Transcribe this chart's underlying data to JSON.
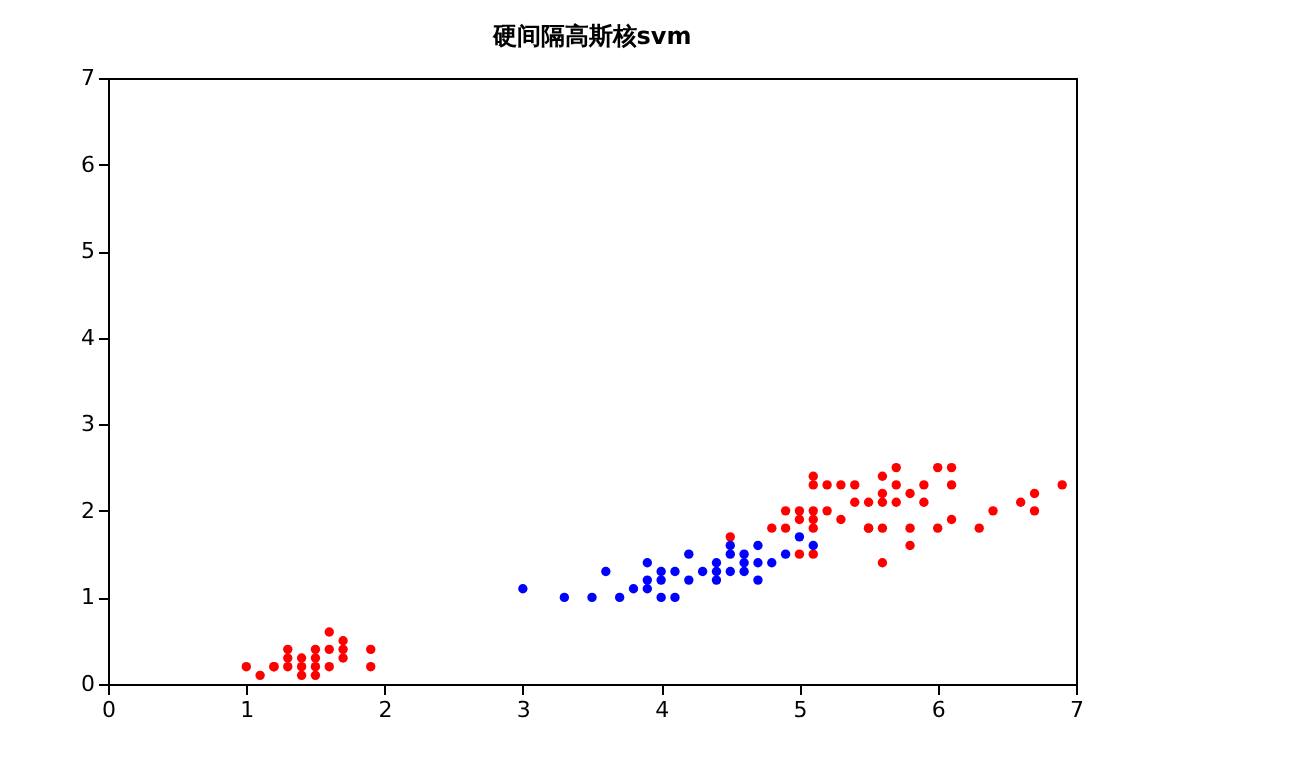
{
  "chart_data": {
    "type": "scatter",
    "title": "硬间隔高斯核svm",
    "marker": "circle",
    "grid": false,
    "xlim": [
      0,
      7
    ],
    "ylim": [
      0,
      7
    ],
    "xticks": [
      0,
      1,
      2,
      3,
      4,
      5,
      6,
      7
    ],
    "yticks": [
      0,
      1,
      2,
      3,
      4,
      5,
      6,
      7
    ],
    "series": [
      {
        "color": "#ff0000",
        "x": [
          1.4,
          1.3,
          1.5,
          1.7,
          1.4,
          1.5,
          1.6,
          1.4,
          1.1,
          1.2,
          1.5,
          1.3,
          1.7,
          1.5,
          1.0,
          1.9,
          1.6,
          1.6,
          1.9,
          1.3,
          1.7,
          1.2,
          6.0,
          5.1,
          5.9,
          5.6,
          5.8,
          6.6,
          4.5,
          6.3,
          6.1,
          5.1,
          5.3,
          5.5,
          5.0,
          5.1,
          5.3,
          6.7,
          6.9,
          5.0,
          5.7,
          4.9,
          6.7,
          4.9,
          5.7,
          6.0,
          4.8,
          5.6,
          5.8,
          6.1,
          6.4,
          5.6,
          5.1,
          5.6,
          6.1,
          5.6,
          5.5,
          5.4,
          5.1,
          5.9,
          5.7,
          5.2,
          5.0,
          5.2,
          5.4,
          5.1,
          5.8,
          5.5
        ],
        "values": [
          0.2,
          0.2,
          0.2,
          0.4,
          0.3,
          0.1,
          0.2,
          0.1,
          0.1,
          0.2,
          0.4,
          0.4,
          0.3,
          0.3,
          0.2,
          0.2,
          0.4,
          0.6,
          0.4,
          0.3,
          0.5,
          0.2,
          2.5,
          1.9,
          2.1,
          1.8,
          2.2,
          2.1,
          1.7,
          1.8,
          2.5,
          2.0,
          1.9,
          2.1,
          2.0,
          2.4,
          2.3,
          2.2,
          2.3,
          1.5,
          2.3,
          2.0,
          2.0,
          1.8,
          2.1,
          1.8,
          1.8,
          2.1,
          1.6,
          1.9,
          2.0,
          2.2,
          1.5,
          1.4,
          2.3,
          2.4,
          1.8,
          2.1,
          2.3,
          2.3,
          2.5,
          2.3,
          1.9,
          2.0,
          2.3,
          1.8,
          1.8,
          1.8
        ]
      },
      {
        "color": "#0000ff",
        "x": [
          4.7,
          4.5,
          4.9,
          4.0,
          4.6,
          4.5,
          4.7,
          3.3,
          4.6,
          3.9,
          3.5,
          4.2,
          4.0,
          3.6,
          4.4,
          4.1,
          3.9,
          4.7,
          4.3,
          4.8,
          5.0,
          3.8,
          3.7,
          3.9,
          5.1,
          4.5,
          4.4,
          4.1,
          4.4,
          4.6,
          4.0,
          4.2,
          3.0
        ],
        "values": [
          1.4,
          1.5,
          1.5,
          1.3,
          1.5,
          1.3,
          1.6,
          1.0,
          1.3,
          1.4,
          1.0,
          1.5,
          1.0,
          1.3,
          1.4,
          1.0,
          1.1,
          1.2,
          1.3,
          1.4,
          1.7,
          1.1,
          1.0,
          1.2,
          1.6,
          1.6,
          1.3,
          1.3,
          1.2,
          1.4,
          1.2,
          1.2,
          1.1
        ]
      }
    ]
  }
}
